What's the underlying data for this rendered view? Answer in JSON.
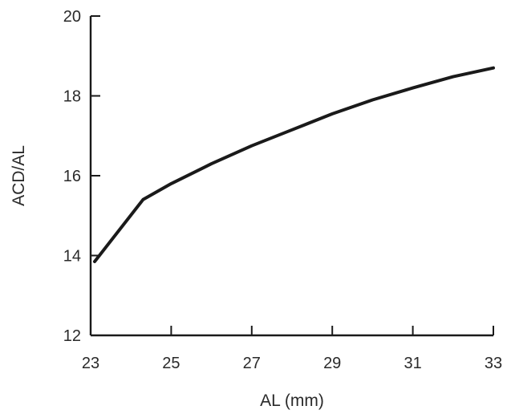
{
  "chart_data": {
    "type": "line",
    "title": "",
    "xlabel": "AL (mm)",
    "ylabel": "ACD/AL",
    "xlim": [
      23,
      33
    ],
    "ylim": [
      12,
      20
    ],
    "xticks": [
      23,
      25,
      27,
      29,
      31,
      33
    ],
    "yticks": [
      12,
      14,
      16,
      18,
      20
    ],
    "grid": false,
    "legend": "none",
    "series": [
      {
        "color": "#1a1a1a",
        "x": [
          23.1,
          24.3,
          25.0,
          26.0,
          27.0,
          28.0,
          29.0,
          30.0,
          31.0,
          32.0,
          33.0
        ],
        "y": [
          13.85,
          15.4,
          15.8,
          16.3,
          16.75,
          17.15,
          17.55,
          17.9,
          18.2,
          18.48,
          18.7
        ]
      }
    ]
  }
}
